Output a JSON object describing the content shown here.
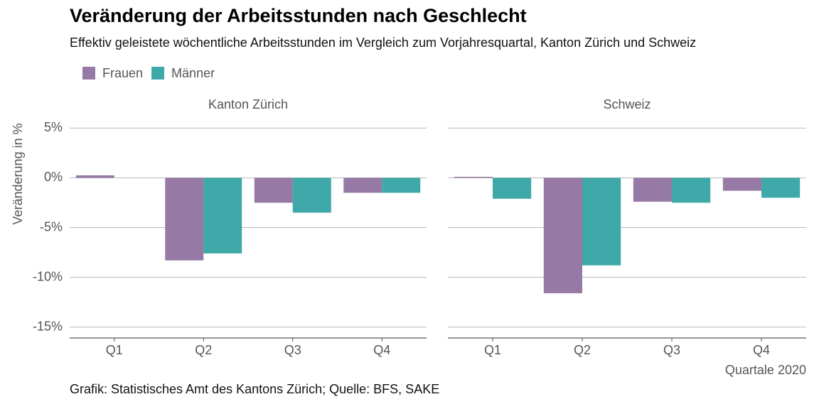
{
  "title": "Veränderung der Arbeitsstunden nach Geschlecht",
  "subtitle": "Effektiv geleistete wöchentliche Arbeitsstunden im Vergleich zum Vorjahresquartal, Kanton Zürich und Schweiz",
  "caption": "Grafik: Statistisches Amt des Kantons Zürich; Quelle: BFS, SAKE",
  "chart_data": [
    {
      "type": "bar",
      "title": "Kanton Zürich",
      "ylabel": "Veränderung in %",
      "categories": [
        "Q1",
        "Q2",
        "Q3",
        "Q4"
      ],
      "series": [
        {
          "name": "Frauen",
          "color": "#9779a6",
          "values": [
            0.25,
            -8.3,
            -2.5,
            -1.5
          ]
        },
        {
          "name": "Männer",
          "color": "#3fa8a8",
          "values": [
            0,
            -7.6,
            -3.5,
            -1.5
          ]
        }
      ],
      "ylim": [
        -16.1,
        6.1
      ],
      "yticks": [
        {
          "value": 5,
          "label": "5%"
        },
        {
          "value": 0,
          "label": "0%"
        },
        {
          "value": -5,
          "label": "-5%"
        },
        {
          "value": -10,
          "label": "-10%"
        },
        {
          "value": -15,
          "label": "-15%"
        }
      ],
      "grid": true
    },
    {
      "type": "bar",
      "title": "Schweiz",
      "xlabel": "Quartale 2020",
      "categories": [
        "Q1",
        "Q2",
        "Q3",
        "Q4"
      ],
      "series": [
        {
          "name": "Frauen",
          "color": "#9779a6",
          "values": [
            0.1,
            -11.6,
            -2.4,
            -1.3
          ]
        },
        {
          "name": "Männer",
          "color": "#3fa8a8",
          "values": [
            -2.1,
            -8.8,
            -2.5,
            -2.0
          ]
        }
      ],
      "ylim": [
        -16.1,
        6.1
      ],
      "yticks": [
        5,
        0,
        -5,
        -10,
        -15
      ],
      "grid": true
    }
  ]
}
